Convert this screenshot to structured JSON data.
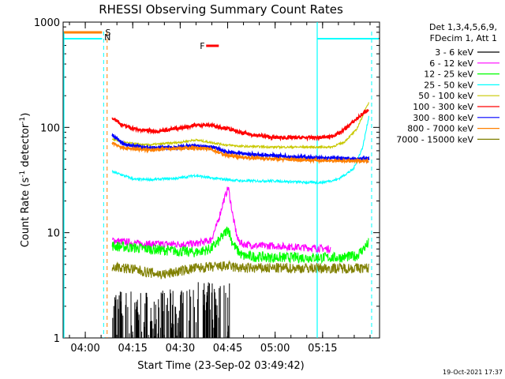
{
  "chart_data": {
    "type": "line",
    "title": "RHESSI Observing Summary Count Rates",
    "xlabel": "Start Time (23-Sep-02 03:49:42)",
    "ylabel_main": "Count Rate (s",
    "ylabel_sup1": "-1",
    "ylabel_mid": " detector",
    "ylabel_sup2": "-1",
    "ylabel_end": ")",
    "y_scale": "log",
    "ylim": [
      1,
      1000
    ],
    "xlim_minutes": [
      3.3,
      103.3
    ],
    "x_ticks": [
      {
        "label": "04:00",
        "min": 10.3
      },
      {
        "label": "04:15",
        "min": 25.3
      },
      {
        "label": "04:30",
        "min": 40.3
      },
      {
        "label": "04:45",
        "min": 55.3
      },
      {
        "label": "05:00",
        "min": 70.3
      },
      {
        "label": "05:15",
        "min": 85.3
      }
    ],
    "y_ticks": [
      {
        "label": "1",
        "value": 1
      },
      {
        "label": "10",
        "value": 10
      },
      {
        "label": "100",
        "value": 100
      },
      {
        "label": "1000",
        "value": 1000
      }
    ],
    "legend_header": [
      "Det 1,3,4,5,6,9,",
      "FDecim 1, Att 1"
    ],
    "legend_position": "right",
    "series": [
      {
        "name": "3 - 6 keV",
        "color": "#000000",
        "x": [
          18.8,
          56.0
        ],
        "y": [
          3.0,
          3.0
        ]
      },
      {
        "name": "6 - 12 keV",
        "color": "#ff00ff",
        "x": [
          18.8,
          25,
          30,
          40,
          45,
          50,
          52,
          54,
          55.5,
          57,
          58.5,
          60,
          65,
          70,
          80,
          88
        ],
        "y": [
          8.5,
          8.0,
          7.8,
          7.8,
          7.8,
          8.5,
          12,
          20,
          27,
          14,
          8.5,
          7.8,
          7.5,
          7.5,
          7.2,
          7.0
        ]
      },
      {
        "name": "12 - 25 keV",
        "color": "#00ff00",
        "x": [
          18.8,
          30,
          45,
          50,
          52,
          54,
          55.5,
          56.5,
          58,
          60,
          70,
          80,
          90,
          96,
          100
        ],
        "y": [
          7.5,
          7.0,
          6.5,
          7.0,
          8.0,
          9.5,
          11,
          8.5,
          7.0,
          6.0,
          5.8,
          5.8,
          5.8,
          6.0,
          8.0
        ]
      },
      {
        "name": "25 - 50 keV",
        "color": "#00ffff",
        "x": [
          18.8,
          26,
          32,
          40,
          45,
          50,
          60,
          70,
          80,
          85,
          90,
          95,
          98,
          100
        ],
        "y": [
          38,
          32,
          32,
          33,
          35,
          33,
          31,
          31,
          30,
          30,
          32,
          40,
          65,
          130
        ]
      },
      {
        "name": "50 - 100 keV",
        "color": "#c8c800",
        "x": [
          18.8,
          22,
          30,
          40,
          45,
          50,
          55,
          60,
          70,
          80,
          88,
          92,
          96,
          100
        ],
        "y": [
          78,
          72,
          68,
          72,
          76,
          72,
          68,
          66,
          65,
          65,
          65,
          72,
          95,
          175
        ]
      },
      {
        "name": "100 - 300 keV",
        "color": "#ff0000",
        "x": [
          18.8,
          22,
          27,
          33,
          40,
          45,
          50,
          55,
          60,
          70,
          75,
          80,
          85,
          88,
          91,
          93,
          96,
          100
        ],
        "y": [
          125,
          105,
          95,
          92,
          98,
          105,
          105,
          98,
          88,
          80,
          80,
          80,
          80,
          82,
          90,
          100,
          120,
          150
        ]
      },
      {
        "name": "300 - 800 keV",
        "color": "#0000ff",
        "x": [
          18.8,
          22,
          30,
          40,
          45,
          50,
          55,
          60,
          70,
          80,
          85,
          90,
          95,
          100
        ],
        "y": [
          85,
          70,
          64,
          65,
          67,
          66,
          58,
          56,
          54,
          52,
          51,
          51,
          50,
          50
        ]
      },
      {
        "name": "800 - 7000 keV",
        "color": "#ff8000",
        "x": [
          18.8,
          22,
          30,
          40,
          45,
          50,
          55,
          60,
          70,
          80,
          90,
          95,
          100
        ],
        "y": [
          72,
          64,
          61,
          63,
          64,
          62,
          54,
          52,
          50,
          49,
          48,
          48,
          48
        ]
      },
      {
        "name": "7000 - 15000 keV",
        "color": "#808000",
        "x": [
          18.8,
          25,
          30,
          35,
          40,
          45,
          50,
          55,
          60,
          70,
          80,
          90,
          100
        ],
        "y": [
          4.8,
          4.5,
          4.2,
          4.0,
          4.3,
          4.6,
          4.7,
          4.8,
          4.6,
          4.6,
          4.6,
          4.6,
          4.6
        ]
      }
    ],
    "annotations": [
      {
        "label": "S",
        "color": "#ff8000"
      },
      {
        "label": "N",
        "color": "#00ffff"
      },
      {
        "label": "F",
        "color": "#ff0000"
      }
    ],
    "footer_date": "19-Oct-2021 17:37"
  }
}
